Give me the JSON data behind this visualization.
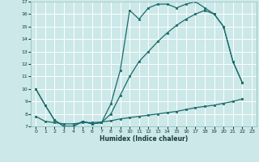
{
  "xlabel": "Humidex (Indice chaleur)",
  "bg_color": "#cce8e8",
  "grid_color": "#ffffff",
  "line_color": "#1a6b6b",
  "curve1_x": [
    0,
    1,
    2,
    3,
    4,
    5,
    6,
    7,
    8,
    9,
    10,
    11,
    12,
    13,
    14,
    15,
    16,
    17,
    18,
    19,
    20,
    21,
    22
  ],
  "curve1_y": [
    10.0,
    8.7,
    7.5,
    7.0,
    7.0,
    7.4,
    7.2,
    7.3,
    8.8,
    11.5,
    16.3,
    15.6,
    16.5,
    16.8,
    16.8,
    16.5,
    16.8,
    17.0,
    16.5,
    16.0,
    15.0,
    12.2,
    10.5
  ],
  "curve2_x": [
    0,
    1,
    2,
    3,
    4,
    5,
    6,
    7,
    8,
    9,
    10,
    11,
    12,
    13,
    14,
    15,
    16,
    17,
    18,
    19,
    20,
    21,
    22
  ],
  "curve2_y": [
    10.0,
    8.7,
    7.5,
    7.0,
    7.0,
    7.4,
    7.2,
    7.3,
    8.0,
    9.5,
    11.0,
    12.2,
    13.0,
    13.8,
    14.5,
    15.1,
    15.6,
    16.0,
    16.3,
    16.0,
    15.0,
    12.2,
    10.5
  ],
  "curve3_x": [
    0,
    1,
    2,
    3,
    4,
    5,
    6,
    7,
    8,
    9,
    10,
    11,
    12,
    13,
    14,
    15,
    16,
    17,
    18,
    19,
    20,
    21,
    22
  ],
  "curve3_y": [
    7.8,
    7.4,
    7.3,
    7.2,
    7.2,
    7.3,
    7.3,
    7.35,
    7.45,
    7.6,
    7.7,
    7.8,
    7.9,
    8.0,
    8.1,
    8.2,
    8.35,
    8.5,
    8.6,
    8.7,
    8.85,
    9.0,
    9.2
  ],
  "ylim": [
    7,
    17
  ],
  "xlim": [
    -0.5,
    23.5
  ],
  "yticks": [
    7,
    8,
    9,
    10,
    11,
    12,
    13,
    14,
    15,
    16,
    17
  ],
  "xticks": [
    0,
    1,
    2,
    3,
    4,
    5,
    6,
    7,
    8,
    9,
    10,
    11,
    12,
    13,
    14,
    15,
    16,
    17,
    18,
    19,
    20,
    21,
    22,
    23
  ]
}
